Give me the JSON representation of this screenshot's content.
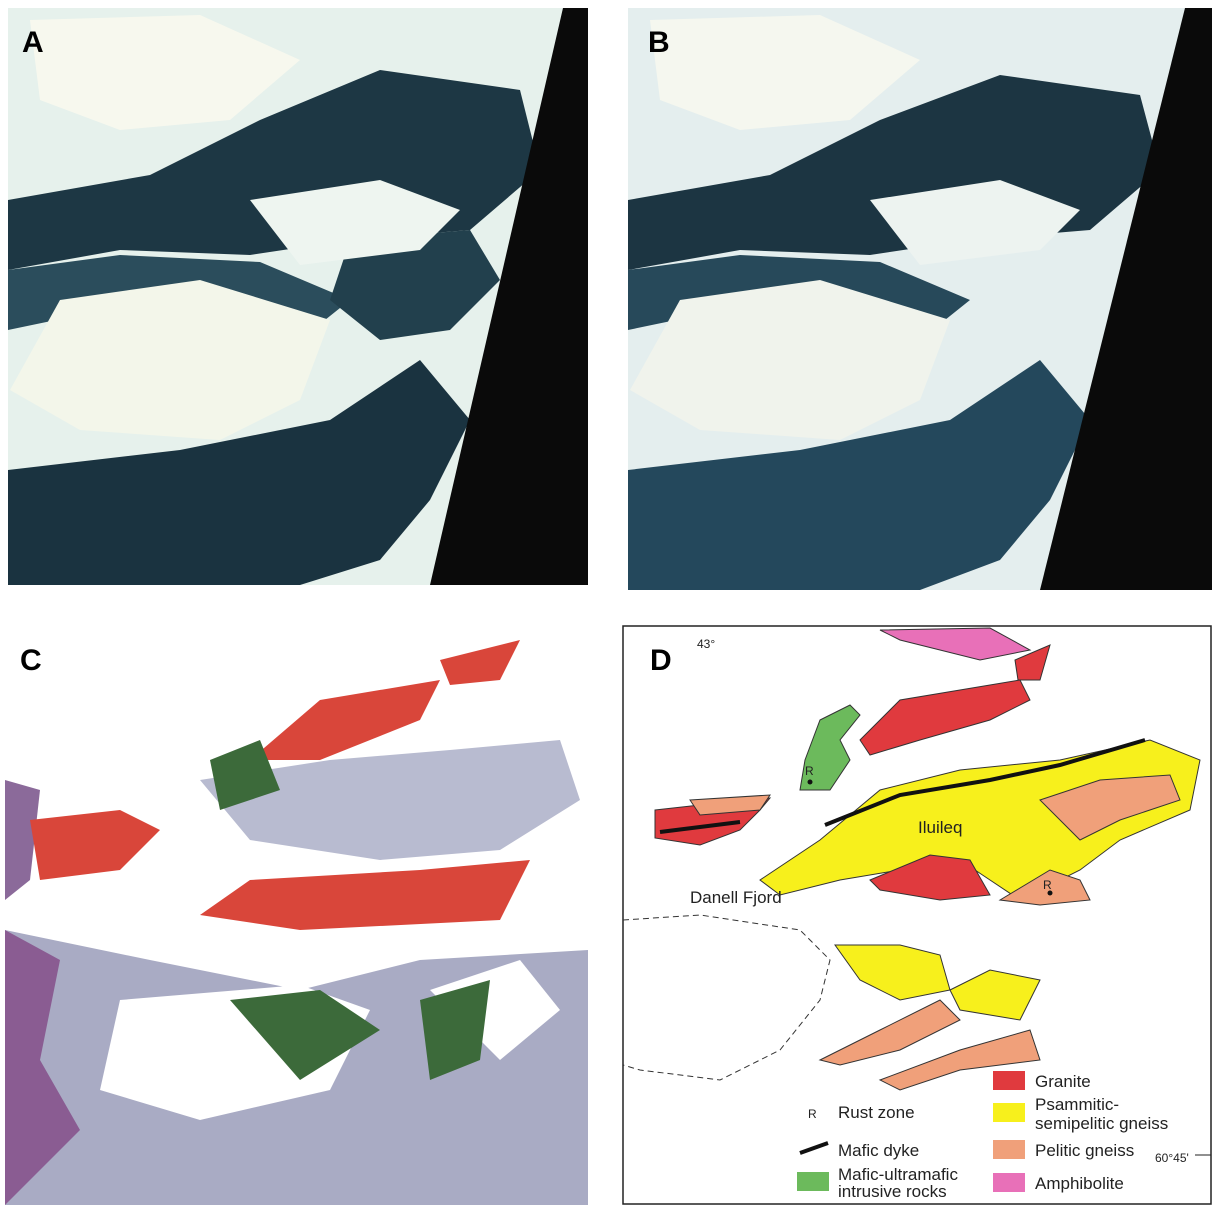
{
  "panels": [
    {
      "label": "A"
    },
    {
      "label": "B"
    },
    {
      "label": "C"
    },
    {
      "label": "D"
    }
  ],
  "map": {
    "labels": {
      "longitude": "43°",
      "latitude": "60°45'",
      "place": "Iluileq",
      "fjord": "Danell Fjord",
      "rust_1": "R",
      "rust_2": "R"
    },
    "legend": {
      "granite": "Granite",
      "psammitic": [
        "Psammitic-",
        "semipelitic gneiss"
      ],
      "pelitic": "Pelitic gneiss",
      "amphibolite": "Amphibolite",
      "rust_symbol": "R",
      "rust": "Rust zone",
      "dyke": "Mafic dyke",
      "intrusive": [
        "Mafic-ultramafic",
        "intrusive rocks"
      ]
    }
  }
}
